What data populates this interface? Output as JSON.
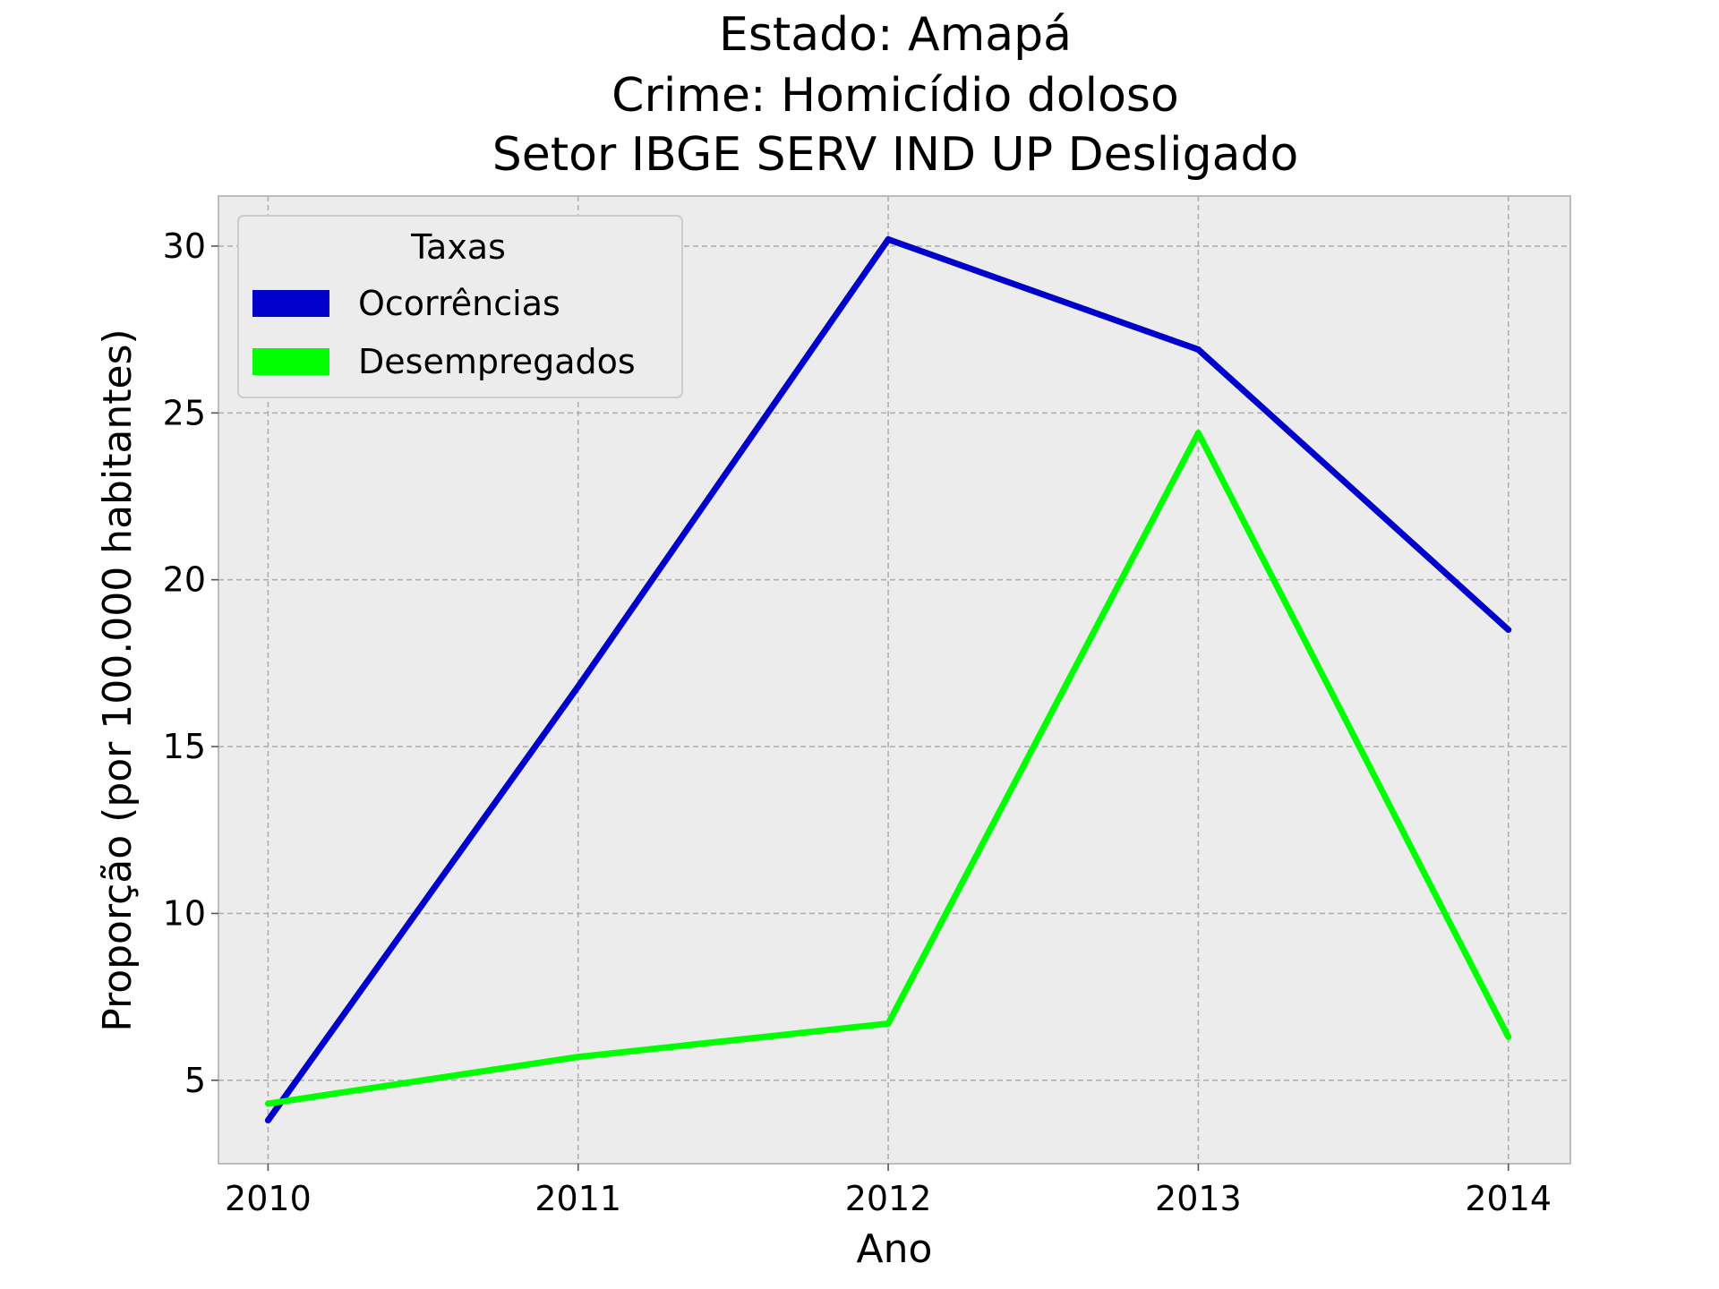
{
  "chart_data": {
    "type": "line",
    "title_lines": [
      "Estado: Amapá",
      "Crime: Homicídio doloso",
      "Setor IBGE  SERV IND UP   Desligado"
    ],
    "xlabel": "Ano",
    "ylabel": "Proporção (por 100.000 habitantes)",
    "x": [
      2010,
      2011,
      2012,
      2013,
      2014
    ],
    "x_tick_labels": [
      "2010",
      "2011",
      "2012",
      "2013",
      "2014"
    ],
    "y_ticks": [
      5,
      10,
      15,
      20,
      25,
      30
    ],
    "y_tick_labels": [
      "5",
      "10",
      "15",
      "20",
      "25",
      "30"
    ],
    "xlim": [
      2009.84,
      2014.2
    ],
    "ylim": [
      2.5,
      31.5
    ],
    "grid": true,
    "legend": {
      "title": "Taxas",
      "placement": "top-left"
    },
    "series": [
      {
        "name": "Ocorrências",
        "color": "#0000CC",
        "values": [
          3.8,
          16.8,
          30.2,
          26.9,
          18.5
        ]
      },
      {
        "name": "Desempregados",
        "color": "#00FF00",
        "values": [
          4.3,
          5.7,
          6.7,
          24.4,
          6.3
        ]
      }
    ]
  }
}
